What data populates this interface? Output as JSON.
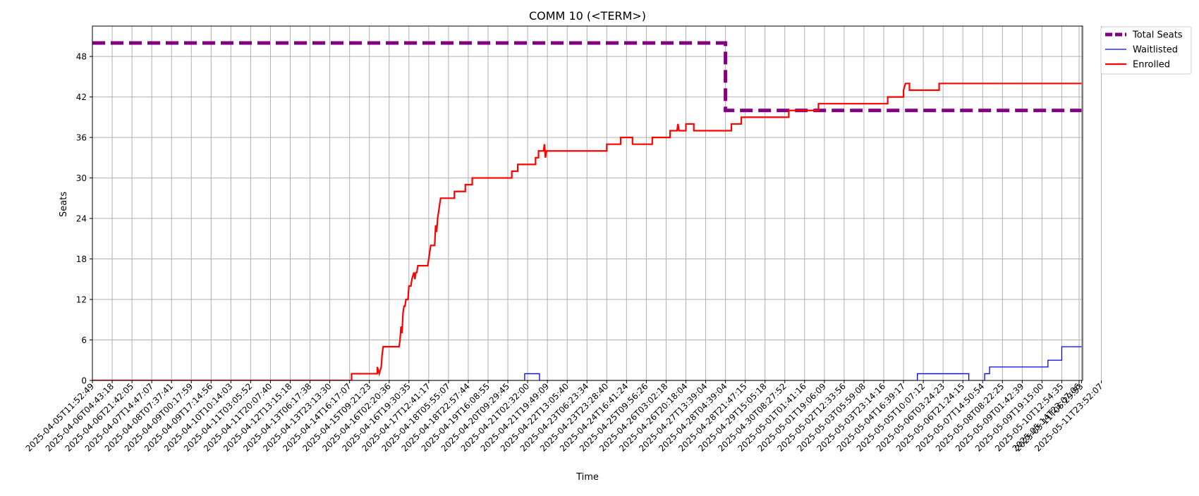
{
  "chart_data": {
    "type": "line",
    "title": "COMM 10 (<TERM>)",
    "xlabel": "Time",
    "ylabel": "Seats",
    "ylim": [
      0,
      52.5
    ],
    "yticks": [
      0,
      6,
      12,
      18,
      24,
      30,
      36,
      42,
      48
    ],
    "grid": true,
    "legend_position": "outside-top-right",
    "x_tick_labels": [
      "2025-04-05T11:52:49",
      "2025-04-06T04:43:18",
      "2025-04-06T21:42:05",
      "2025-04-07T14:47:07",
      "2025-04-08T07:37:41",
      "2025-04-09T00:17:59",
      "2025-04-09T17:14:56",
      "2025-04-10T10:14:03",
      "2025-04-11T03:05:52",
      "2025-04-11T20:07:40",
      "2025-04-12T13:15:18",
      "2025-04-13T06:17:38",
      "2025-04-13T23:13:30",
      "2025-04-14T16:17:07",
      "2025-04-15T09:21:23",
      "2025-04-16T02:20:36",
      "2025-04-16T19:30:35",
      "2025-04-17T12:41:17",
      "2025-04-18T05:55:07",
      "2025-04-18T22:57:44",
      "2025-04-19T16:08:55",
      "2025-04-20T09:29:45",
      "2025-04-21T02:32:00",
      "2025-04-21T19:49:09",
      "2025-04-22T13:05:40",
      "2025-04-23T06:23:34",
      "2025-04-23T23:28:40",
      "2025-04-24T16:41:24",
      "2025-04-25T09:56:26",
      "2025-04-26T03:02:18",
      "2025-04-26T20:18:04",
      "2025-04-27T13:39:04",
      "2025-04-28T04:39:04",
      "2025-04-28T21:47:15",
      "2025-04-29T15:05:18",
      "2025-04-30T08:27:52",
      "2025-05-01T01:41:16",
      "2025-05-01T19:06:09",
      "2025-05-02T12:33:56",
      "2025-05-03T05:59:08",
      "2025-05-03T23:14:16",
      "2025-05-04T16:39:17",
      "2025-05-05T10:07:12",
      "2025-05-06T03:24:23",
      "2025-05-06T21:24:15",
      "2025-05-07T14:50:54",
      "2025-05-08T08:22:25",
      "2025-05-09T01:42:39",
      "2025-05-09T19:15:00",
      "2025-05-10T12:54:35",
      "2025-05-11T06:29:53",
      "2025-05-11T23:52:07",
      "2025-05-14T23:07:06"
    ],
    "series": [
      {
        "name": "Total Seats",
        "color": "#800080",
        "style": "dashed",
        "points": [
          [
            0,
            50
          ],
          [
            32.0,
            50
          ],
          [
            32.0,
            40
          ],
          [
            50.0,
            40
          ]
        ]
      },
      {
        "name": "Waitlisted",
        "color": "#0000ff",
        "style": "solid",
        "points": [
          [
            0,
            0
          ],
          [
            21.85,
            0
          ],
          [
            21.85,
            1
          ],
          [
            22.6,
            1
          ],
          [
            22.6,
            0
          ],
          [
            41.7,
            0
          ],
          [
            41.7,
            1
          ],
          [
            44.3,
            1
          ],
          [
            44.3,
            0
          ],
          [
            45.1,
            0
          ],
          [
            45.1,
            1
          ],
          [
            45.35,
            1
          ],
          [
            45.35,
            2
          ],
          [
            48.3,
            2
          ],
          [
            48.3,
            3
          ],
          [
            49.0,
            3
          ],
          [
            49.0,
            5
          ],
          [
            50.0,
            5
          ]
        ]
      },
      {
        "name": "Enrolled",
        "color": "#ff0000",
        "style": "solid",
        "points": [
          [
            0,
            0
          ],
          [
            13.1,
            0
          ],
          [
            13.1,
            1
          ],
          [
            14.4,
            1
          ],
          [
            14.4,
            2
          ],
          [
            14.5,
            1
          ],
          [
            14.6,
            2
          ],
          [
            14.65,
            4
          ],
          [
            14.7,
            5
          ],
          [
            15.5,
            5
          ],
          [
            15.55,
            6
          ],
          [
            15.6,
            8
          ],
          [
            15.65,
            7
          ],
          [
            15.7,
            10
          ],
          [
            15.75,
            11
          ],
          [
            15.8,
            11
          ],
          [
            15.85,
            12
          ],
          [
            15.95,
            12
          ],
          [
            16.0,
            14
          ],
          [
            16.1,
            14
          ],
          [
            16.15,
            15
          ],
          [
            16.25,
            16
          ],
          [
            16.3,
            15
          ],
          [
            16.35,
            16
          ],
          [
            16.4,
            16
          ],
          [
            16.45,
            17
          ],
          [
            16.95,
            17
          ],
          [
            17.0,
            18
          ],
          [
            17.05,
            19
          ],
          [
            17.1,
            20
          ],
          [
            17.3,
            20
          ],
          [
            17.35,
            23
          ],
          [
            17.4,
            22
          ],
          [
            17.45,
            24
          ],
          [
            17.55,
            26
          ],
          [
            17.6,
            27
          ],
          [
            18.3,
            27
          ],
          [
            18.3,
            28
          ],
          [
            18.85,
            28
          ],
          [
            18.85,
            29
          ],
          [
            19.2,
            29
          ],
          [
            19.2,
            30
          ],
          [
            21.2,
            30
          ],
          [
            21.2,
            31
          ],
          [
            21.5,
            31
          ],
          [
            21.5,
            32
          ],
          [
            22.4,
            32
          ],
          [
            22.4,
            33
          ],
          [
            22.55,
            33
          ],
          [
            22.55,
            34
          ],
          [
            22.8,
            34
          ],
          [
            22.85,
            35
          ],
          [
            22.9,
            33
          ],
          [
            22.95,
            34
          ],
          [
            26.0,
            34
          ],
          [
            26.0,
            35
          ],
          [
            26.7,
            35
          ],
          [
            26.7,
            36
          ],
          [
            27.3,
            36
          ],
          [
            27.3,
            35
          ],
          [
            28.3,
            35
          ],
          [
            28.3,
            36
          ],
          [
            29.2,
            36
          ],
          [
            29.2,
            37
          ],
          [
            29.55,
            37
          ],
          [
            29.6,
            38
          ],
          [
            29.65,
            37
          ],
          [
            30.0,
            37
          ],
          [
            30.0,
            38
          ],
          [
            30.4,
            38
          ],
          [
            30.4,
            37
          ],
          [
            32.3,
            37
          ],
          [
            32.3,
            38
          ],
          [
            32.8,
            38
          ],
          [
            32.8,
            39
          ],
          [
            35.2,
            39
          ],
          [
            35.2,
            40
          ],
          [
            35.6,
            40
          ],
          [
            35.6,
            40
          ],
          [
            36.7,
            40
          ],
          [
            36.7,
            41
          ],
          [
            40.2,
            41
          ],
          [
            40.2,
            42
          ],
          [
            41.0,
            42
          ],
          [
            41.0,
            43
          ],
          [
            41.1,
            44
          ],
          [
            41.3,
            44
          ],
          [
            41.3,
            43
          ],
          [
            42.8,
            43
          ],
          [
            42.8,
            44
          ],
          [
            50.0,
            44
          ]
        ]
      }
    ]
  }
}
